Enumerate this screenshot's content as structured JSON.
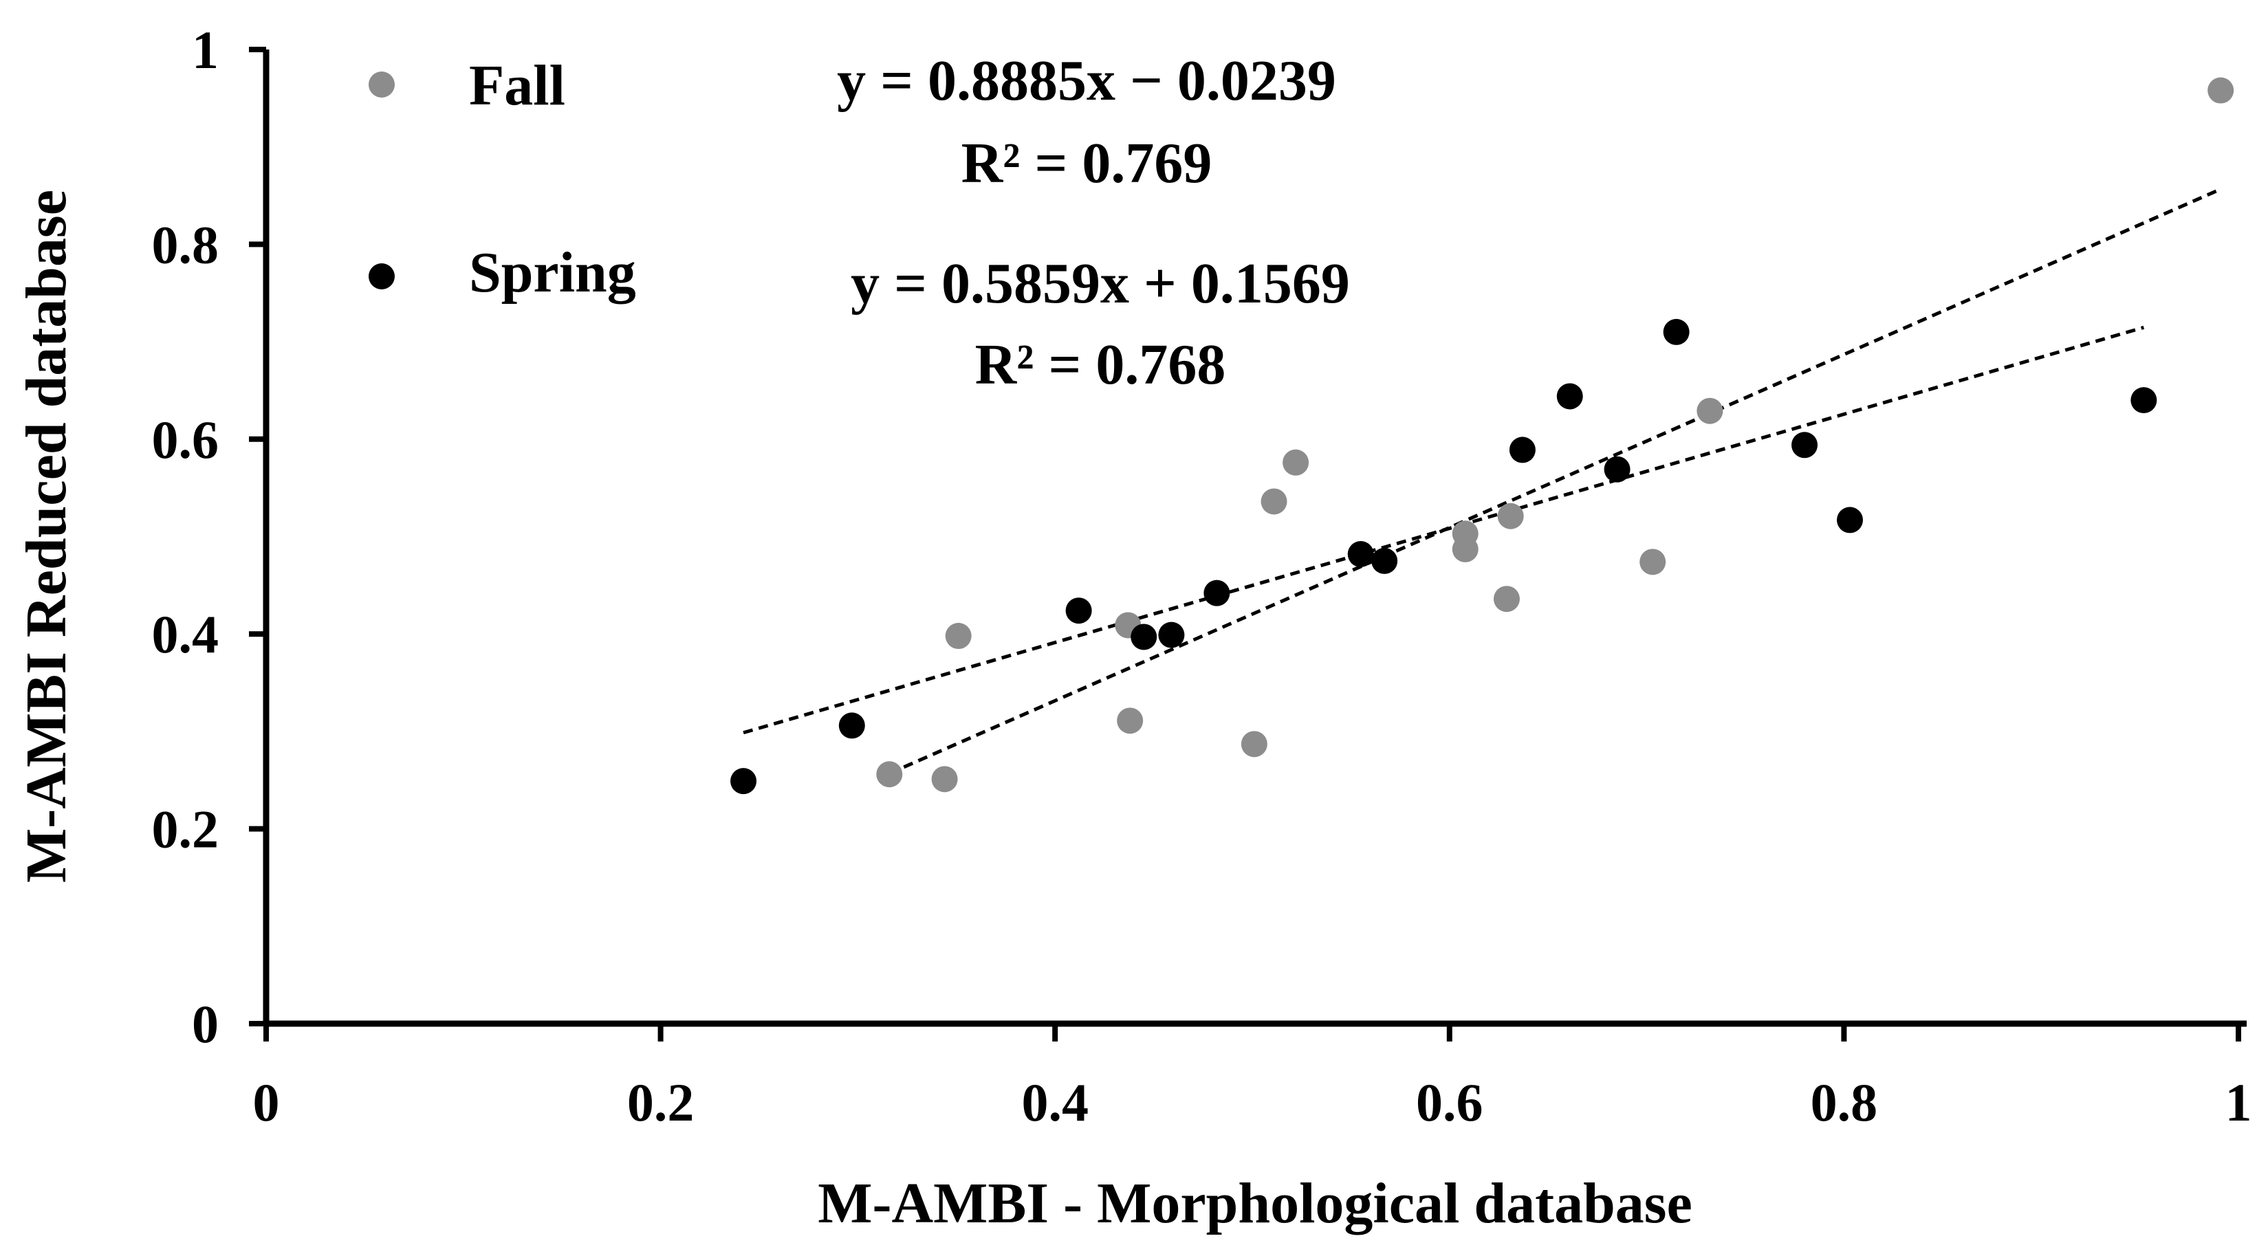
{
  "chart_data": {
    "type": "scatter",
    "title": "",
    "xlabel": "M-AMBI - Morphological database",
    "ylabel": "M-AMBI Reduced database",
    "xlim": [
      0,
      1
    ],
    "ylim": [
      0,
      1
    ],
    "x_ticks": [
      0,
      0.2,
      0.4,
      0.6,
      0.8,
      1
    ],
    "x_tick_labels": [
      "0",
      "0.2",
      "0.4",
      "0.6",
      "0.8",
      "1"
    ],
    "y_ticks": [
      0,
      0.2,
      0.4,
      0.6,
      0.8,
      1
    ],
    "y_tick_labels": [
      "0",
      "0.2",
      "0.4",
      "0.6",
      "0.8",
      "1"
    ],
    "grid": false,
    "legend_position": "top-left",
    "series": [
      {
        "name": "Fall",
        "color": "#8c8c8c",
        "points": [
          {
            "x": 0.316,
            "y": 0.256
          },
          {
            "x": 0.344,
            "y": 0.251
          },
          {
            "x": 0.351,
            "y": 0.398
          },
          {
            "x": 0.437,
            "y": 0.409
          },
          {
            "x": 0.438,
            "y": 0.311
          },
          {
            "x": 0.501,
            "y": 0.287
          },
          {
            "x": 0.511,
            "y": 0.536
          },
          {
            "x": 0.522,
            "y": 0.576
          },
          {
            "x": 0.608,
            "y": 0.503
          },
          {
            "x": 0.608,
            "y": 0.487
          },
          {
            "x": 0.629,
            "y": 0.436
          },
          {
            "x": 0.631,
            "y": 0.521
          },
          {
            "x": 0.703,
            "y": 0.474
          },
          {
            "x": 0.732,
            "y": 0.629
          },
          {
            "x": 0.991,
            "y": 0.958
          }
        ],
        "trendline": {
          "x_range": [
            0.316,
            0.991
          ],
          "slope": 0.8885,
          "intercept": -0.0239,
          "equation": "y = 0.8885x − 0.0239",
          "r2": "R² = 0.769"
        }
      },
      {
        "name": "Spring",
        "color": "#000000",
        "points": [
          {
            "x": 0.242,
            "y": 0.249
          },
          {
            "x": 0.297,
            "y": 0.306
          },
          {
            "x": 0.412,
            "y": 0.424
          },
          {
            "x": 0.445,
            "y": 0.397
          },
          {
            "x": 0.459,
            "y": 0.399
          },
          {
            "x": 0.482,
            "y": 0.442
          },
          {
            "x": 0.555,
            "y": 0.482
          },
          {
            "x": 0.567,
            "y": 0.475
          },
          {
            "x": 0.637,
            "y": 0.589
          },
          {
            "x": 0.661,
            "y": 0.644
          },
          {
            "x": 0.685,
            "y": 0.569
          },
          {
            "x": 0.715,
            "y": 0.71
          },
          {
            "x": 0.78,
            "y": 0.594
          },
          {
            "x": 0.803,
            "y": 0.517
          },
          {
            "x": 0.952,
            "y": 0.64
          }
        ],
        "trendline": {
          "x_range": [
            0.242,
            0.952
          ],
          "slope": 0.5859,
          "intercept": 0.1569,
          "equation": "y = 0.5859x + 0.1569",
          "r2": "R² = 0.768"
        }
      }
    ]
  }
}
